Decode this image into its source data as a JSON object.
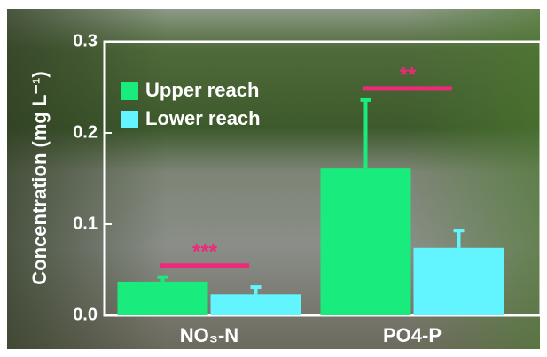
{
  "chart_data": {
    "type": "bar",
    "y_label": "Concentration (mg L⁻¹)",
    "categories": [
      "NO₃-N",
      "PO4-P"
    ],
    "series": [
      {
        "name": "Upper reach",
        "color": "#19ec7c",
        "values": [
          0.037,
          0.161
        ],
        "errors": [
          0.005,
          0.075
        ]
      },
      {
        "name": "Lower reach",
        "color": "#63f5ff",
        "values": [
          0.023,
          0.074
        ],
        "errors": [
          0.008,
          0.019
        ]
      }
    ],
    "significance": [
      "***",
      "**"
    ],
    "significance_color": "#f0287a",
    "ylim": [
      0,
      0.3
    ],
    "yticks": [
      {
        "value": 0,
        "label": "0.0"
      },
      0.1,
      0.2,
      0.3
    ],
    "legend": "upper-left"
  }
}
